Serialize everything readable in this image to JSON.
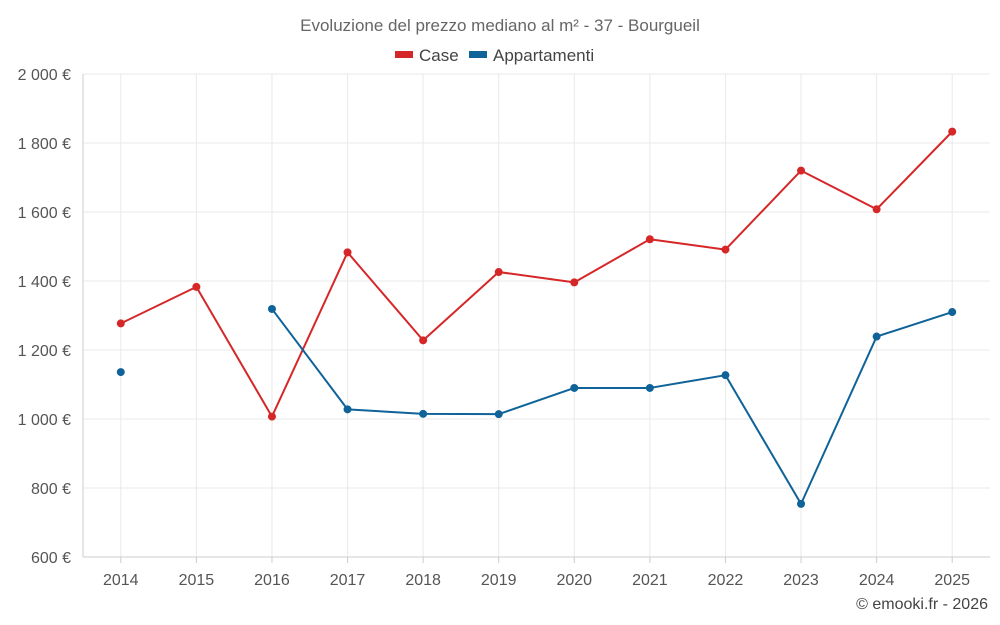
{
  "chart_data": {
    "type": "line",
    "title": "Evoluzione del prezzo mediano al m² - 37 - Bourgueil",
    "categories": [
      "2014",
      "2015",
      "2016",
      "2017",
      "2018",
      "2019",
      "2020",
      "2021",
      "2022",
      "2023",
      "2024",
      "2025"
    ],
    "series": [
      {
        "name": "Case",
        "color": "#d62728",
        "values": [
          1277,
          1383,
          1007,
          1483,
          1228,
          1426,
          1396,
          1521,
          1491,
          1720,
          1608,
          1833
        ]
      },
      {
        "name": "Appartamenti",
        "color": "#0f6399",
        "values": [
          1136,
          null,
          1319,
          1028,
          1015,
          1014,
          1090,
          1090,
          1127,
          754,
          1239,
          1310
        ]
      }
    ],
    "ylim": [
      600,
      2000
    ],
    "yticks": [
      600,
      800,
      1000,
      1200,
      1400,
      1600,
      1800,
      2000
    ],
    "ytick_labels": [
      "600 €",
      "800 €",
      "1 000 €",
      "1 200 €",
      "1 400 €",
      "1 600 €",
      "1 800 €",
      "2 000 €"
    ],
    "grid": true,
    "legend_position": "top-center",
    "xlabel": "",
    "ylabel": ""
  },
  "credit": "© emooki.fr - 2026"
}
